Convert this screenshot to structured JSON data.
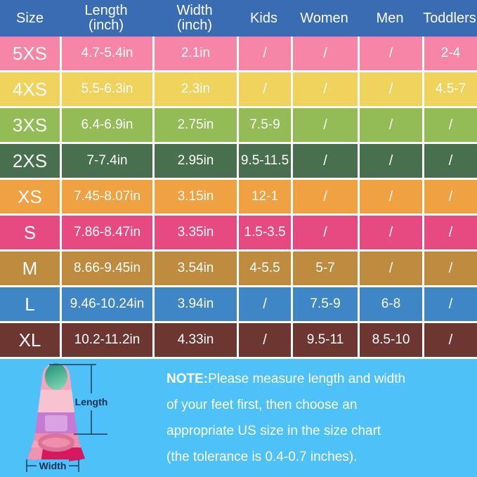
{
  "header": {
    "bg": "#3a6cb4",
    "columns": [
      {
        "label": "Size",
        "sub": ""
      },
      {
        "label": "Length",
        "sub": "(inch)"
      },
      {
        "label": "Width",
        "sub": "(inch)"
      },
      {
        "label": "Kids",
        "sub": ""
      },
      {
        "label": "Women",
        "sub": ""
      },
      {
        "label": "Men",
        "sub": ""
      },
      {
        "label": "Toddlers",
        "sub": ""
      }
    ]
  },
  "table": {
    "rows": [
      {
        "color": "#f685a7",
        "cells": [
          "5XS",
          "4.7-5.4in",
          "2.1in",
          "/",
          "/",
          "/",
          "2-4"
        ]
      },
      {
        "color": "#efd35d",
        "cells": [
          "4XS",
          "5.5-6.3in",
          "2.3in",
          "/",
          "/",
          "/",
          "4.5-7"
        ]
      },
      {
        "color": "#93bb56",
        "cells": [
          "3XS",
          "6.4-6.9in",
          "2.75in",
          "7.5-9",
          "/",
          "/",
          "/"
        ]
      },
      {
        "color": "#48704e",
        "cells": [
          "2XS",
          "7-7.4in",
          "2.95in",
          "9.5-11.5",
          "/",
          "/",
          "/"
        ]
      },
      {
        "color": "#f0a242",
        "cells": [
          "XS",
          "7.45-8.07in",
          "3.15in",
          "12-1",
          "/",
          "/",
          "/"
        ]
      },
      {
        "color": "#e74a80",
        "cells": [
          "S",
          "7.86-8.47in",
          "3.35in",
          "1.5-3.5",
          "/",
          "/",
          "/"
        ]
      },
      {
        "color": "#bf8b3e",
        "cells": [
          "M",
          "8.66-9.45in",
          "3.54in",
          "4-5.5",
          "5-7",
          "/",
          "/"
        ]
      },
      {
        "color": "#3f86c6",
        "cells": [
          "L",
          "9.46-10.24in",
          "3.94in",
          "/",
          "7.5-9",
          "6-8",
          "/"
        ]
      },
      {
        "color": "#6e3631",
        "cells": [
          "XL",
          "10.2-11.2in",
          "4.33in",
          "/",
          "9.5-11",
          "8.5-10",
          "/"
        ]
      }
    ]
  },
  "footer": {
    "bg": "#4ec2f8",
    "note": {
      "prefix": "NOTE:",
      "lines": [
        "Please measure length and width",
        "of your feet first, then choose an",
        "appropriate US size in the size chart",
        "(the tolerance is 0.4-0.7 inches)."
      ]
    },
    "fin": {
      "length_label": "Length",
      "width_label": "Width"
    }
  },
  "chart_data": {
    "type": "table",
    "columns": [
      "Size",
      "Length (inch)",
      "Width (inch)",
      "Kids",
      "Women",
      "Men",
      "Toddlers"
    ],
    "rows": [
      [
        "5XS",
        "4.7-5.4in",
        "2.1in",
        "/",
        "/",
        "/",
        "2-4"
      ],
      [
        "4XS",
        "5.5-6.3in",
        "2.3in",
        "/",
        "/",
        "/",
        "4.5-7"
      ],
      [
        "3XS",
        "6.4-6.9in",
        "2.75in",
        "7.5-9",
        "/",
        "/",
        "/"
      ],
      [
        "2XS",
        "7-7.4in",
        "2.95in",
        "9.5-11.5",
        "/",
        "/",
        "/"
      ],
      [
        "XS",
        "7.45-8.07in",
        "3.15in",
        "12-1",
        "/",
        "/",
        "/"
      ],
      [
        "S",
        "7.86-8.47in",
        "3.35in",
        "1.5-3.5",
        "/",
        "/",
        "/"
      ],
      [
        "M",
        "8.66-9.45in",
        "3.54in",
        "4-5.5",
        "5-7",
        "/",
        "/"
      ],
      [
        "L",
        "9.46-10.24in",
        "3.94in",
        "/",
        "7.5-9",
        "6-8",
        "/"
      ],
      [
        "XL",
        "10.2-11.2in",
        "4.33in",
        "/",
        "9.5-11",
        "8.5-10",
        "/"
      ]
    ],
    "note": "NOTE:Please measure length and width of your feet first, then choose an appropriate US size in the size chart (the tolerance is 0.4-0.7 inches).",
    "row_colors": [
      "#f685a7",
      "#efd35d",
      "#93bb56",
      "#48704e",
      "#f0a242",
      "#e74a80",
      "#bf8b3e",
      "#3f86c6",
      "#6e3631"
    ]
  }
}
